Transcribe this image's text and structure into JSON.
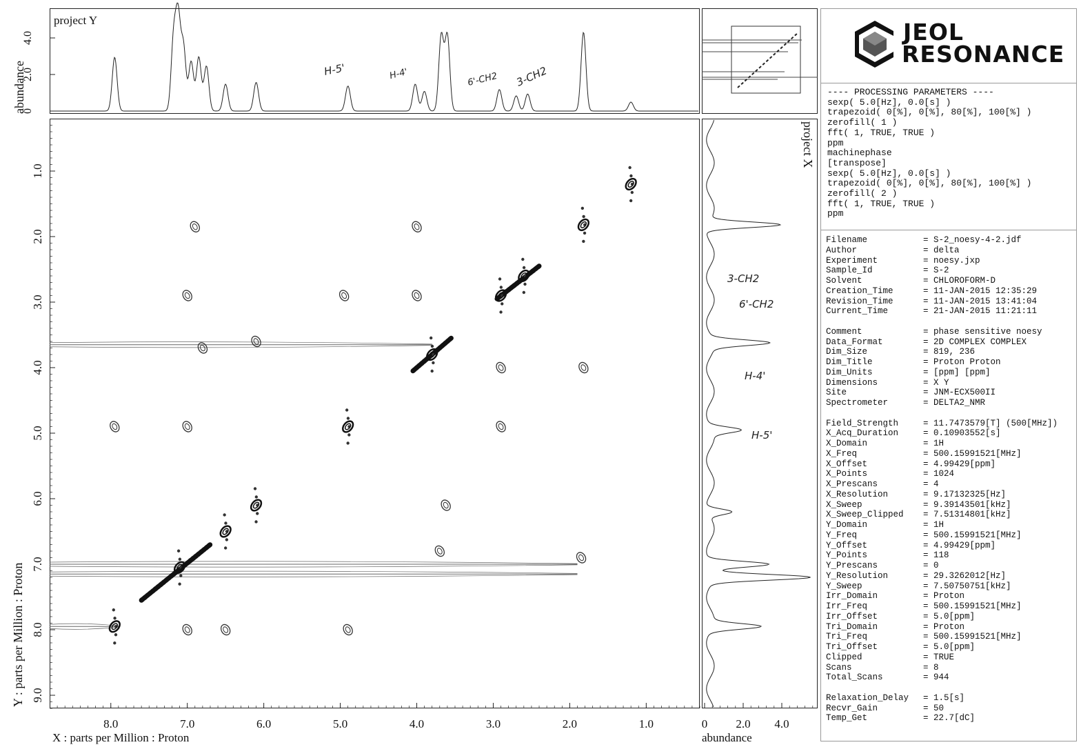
{
  "chart_data": {
    "type": "nmr_2d_contour",
    "title": "",
    "x_axis": {
      "label": "X : parts per Million : Proton",
      "ticks": [
        "8.0",
        "7.0",
        "6.0",
        "5.0",
        "4.0",
        "3.0",
        "2.0",
        "1.0"
      ],
      "range_ppm": [
        8.8,
        0.3
      ],
      "reversed": true
    },
    "y_axis": {
      "label": "Y : parts per Million : Proton",
      "ticks": [
        "1.0",
        "2.0",
        "3.0",
        "4.0",
        "5.0",
        "6.0",
        "7.0",
        "8.0",
        "9.0"
      ],
      "range_ppm": [
        0.2,
        9.2
      ]
    },
    "top_projection": {
      "label": "project Y",
      "ylabel": "abundance",
      "yticks": [
        "4.0",
        "2.0",
        "0"
      ],
      "peaks": [
        {
          "ppm": 7.95,
          "height": 0.6
        },
        {
          "ppm": 7.18,
          "height": 0.78
        },
        {
          "ppm": 7.12,
          "height": 1.0
        },
        {
          "ppm": 7.05,
          "height": 0.7
        },
        {
          "ppm": 6.95,
          "height": 0.55
        },
        {
          "ppm": 6.85,
          "height": 0.6
        },
        {
          "ppm": 6.75,
          "height": 0.5
        },
        {
          "ppm": 6.5,
          "height": 0.3
        },
        {
          "ppm": 6.1,
          "height": 0.32
        },
        {
          "ppm": 4.9,
          "height": 0.28
        },
        {
          "ppm": 4.02,
          "height": 0.3
        },
        {
          "ppm": 3.9,
          "height": 0.22
        },
        {
          "ppm": 3.68,
          "height": 0.84
        },
        {
          "ppm": 3.6,
          "height": 0.84
        },
        {
          "ppm": 2.92,
          "height": 0.24
        },
        {
          "ppm": 2.7,
          "height": 0.17
        },
        {
          "ppm": 2.55,
          "height": 0.19
        },
        {
          "ppm": 1.82,
          "height": 0.88
        },
        {
          "ppm": 1.2,
          "height": 0.1
        }
      ]
    },
    "right_projection": {
      "label": "project X",
      "xlabel": "abundance",
      "xticks": [
        "0",
        "2.0",
        "4.0"
      ],
      "peaks": [
        {
          "ppm": 1.82,
          "height": 0.75
        },
        {
          "ppm": 3.62,
          "height": 0.58
        },
        {
          "ppm": 4.95,
          "height": 0.3
        },
        {
          "ppm": 6.2,
          "height": 0.25
        },
        {
          "ppm": 7.0,
          "height": 0.6
        },
        {
          "ppm": 7.2,
          "height": 1.0
        },
        {
          "ppm": 7.95,
          "height": 0.5
        }
      ]
    },
    "diagonal_peaks": [
      {
        "x": 7.95,
        "y": 7.95
      },
      {
        "x": 7.1,
        "y": 7.05
      },
      {
        "x": 6.5,
        "y": 6.5
      },
      {
        "x": 6.1,
        "y": 6.1
      },
      {
        "x": 4.9,
        "y": 4.9
      },
      {
        "x": 3.8,
        "y": 3.8
      },
      {
        "x": 2.9,
        "y": 2.9
      },
      {
        "x": 2.6,
        "y": 2.6
      },
      {
        "x": 1.82,
        "y": 1.82
      },
      {
        "x": 1.2,
        "y": 1.2
      }
    ],
    "cross_peaks": [
      {
        "x": 6.9,
        "y": 1.85
      },
      {
        "x": 4.0,
        "y": 1.85
      },
      {
        "x": 7.0,
        "y": 2.9
      },
      {
        "x": 4.95,
        "y": 2.9
      },
      {
        "x": 4.0,
        "y": 2.9
      },
      {
        "x": 6.8,
        "y": 3.7
      },
      {
        "x": 6.1,
        "y": 3.6
      },
      {
        "x": 2.9,
        "y": 4.0
      },
      {
        "x": 1.82,
        "y": 4.0
      },
      {
        "x": 7.95,
        "y": 4.9
      },
      {
        "x": 7.0,
        "y": 4.9
      },
      {
        "x": 2.9,
        "y": 4.9
      },
      {
        "x": 3.62,
        "y": 6.1
      },
      {
        "x": 3.7,
        "y": 6.8
      },
      {
        "x": 1.85,
        "y": 6.9
      },
      {
        "x": 7.0,
        "y": 8.0
      },
      {
        "x": 6.5,
        "y": 8.0
      },
      {
        "x": 4.9,
        "y": 8.0
      }
    ],
    "ridges_y": [
      3.65,
      7.0,
      7.15,
      7.95
    ]
  },
  "annotations": {
    "top": [
      "H-5'",
      "H-4'",
      "6'-CH2",
      "3-CH2"
    ],
    "right": [
      "3-CH2",
      "6'-CH2",
      "H-4'",
      "H-5'"
    ]
  },
  "logo": {
    "line1": "JEOL",
    "line2": "RESONANCE"
  },
  "processing": {
    "header": "---- PROCESSING PARAMETERS ----",
    "lines": [
      "sexp( 5.0[Hz], 0.0[s] )",
      "trapezoid( 0[%], 0[%], 80[%], 100[%] )",
      "zerofill( 1 )",
      "fft( 1, TRUE, TRUE )",
      "ppm",
      "machinephase",
      "[transpose]",
      "sexp( 5.0[Hz], 0.0[s] )",
      "trapezoid( 0[%], 0[%], 80[%], 100[%] )",
      "zerofill( 2 )",
      "fft( 1, TRUE, TRUE )",
      "ppm"
    ]
  },
  "metadata": [
    [
      "Filename",
      "= S-2_noesy-4-2.jdf"
    ],
    [
      "Author",
      "= delta"
    ],
    [
      "Experiment",
      "= noesy.jxp"
    ],
    [
      "Sample_Id",
      "= S-2"
    ],
    [
      "Solvent",
      "= CHLOROFORM-D"
    ],
    [
      "Creation_Time",
      "= 11-JAN-2015 12:35:29"
    ],
    [
      "Revision_Time",
      "= 11-JAN-2015 13:41:04"
    ],
    [
      "Current_Time",
      "= 21-JAN-2015 11:21:11"
    ],
    [
      "",
      ""
    ],
    [
      "Comment",
      "= phase sensitive noesy"
    ],
    [
      "Data_Format",
      "= 2D COMPLEX COMPLEX"
    ],
    [
      "Dim_Size",
      "= 819, 236"
    ],
    [
      "Dim_Title",
      "= Proton Proton"
    ],
    [
      "Dim_Units",
      "= [ppm] [ppm]"
    ],
    [
      "Dimensions",
      "= X Y"
    ],
    [
      "Site",
      "= JNM-ECX500II"
    ],
    [
      "Spectrometer",
      "= DELTA2_NMR"
    ],
    [
      "",
      ""
    ],
    [
      "Field_Strength",
      "= 11.7473579[T] (500[MHz])"
    ],
    [
      "X_Acq_Duration",
      "= 0.10903552[s]"
    ],
    [
      "X_Domain",
      "= 1H"
    ],
    [
      "X_Freq",
      "= 500.15991521[MHz]"
    ],
    [
      "X_Offset",
      "= 4.99429[ppm]"
    ],
    [
      "X_Points",
      "= 1024"
    ],
    [
      "X_Prescans",
      "= 4"
    ],
    [
      "X_Resolution",
      "= 9.17132325[Hz]"
    ],
    [
      "X_Sweep",
      "= 9.39143501[kHz]"
    ],
    [
      "X_Sweep_Clipped",
      "= 7.51314801[kHz]"
    ],
    [
      "Y_Domain",
      "= 1H"
    ],
    [
      "Y_Freq",
      "= 500.15991521[MHz]"
    ],
    [
      "Y_Offset",
      "= 4.99429[ppm]"
    ],
    [
      "Y_Points",
      "= 118"
    ],
    [
      "Y_Prescans",
      "= 0"
    ],
    [
      "Y_Resolution",
      "= 29.3262012[Hz]"
    ],
    [
      "Y_Sweep",
      "= 7.50750751[kHz]"
    ],
    [
      "Irr_Domain",
      "= Proton"
    ],
    [
      "Irr_Freq",
      "= 500.15991521[MHz]"
    ],
    [
      "Irr_Offset",
      "= 5.0[ppm]"
    ],
    [
      "Tri_Domain",
      "= Proton"
    ],
    [
      "Tri_Freq",
      "= 500.15991521[MHz]"
    ],
    [
      "Tri_Offset",
      "= 5.0[ppm]"
    ],
    [
      "Clipped",
      "= TRUE"
    ],
    [
      "Scans",
      "= 8"
    ],
    [
      "Total_Scans",
      "= 944"
    ],
    [
      "",
      ""
    ],
    [
      "Relaxation_Delay",
      "= 1.5[s]"
    ],
    [
      "Recvr_Gain",
      "= 50"
    ],
    [
      "Temp_Get",
      "= 22.7[dC]"
    ]
  ]
}
